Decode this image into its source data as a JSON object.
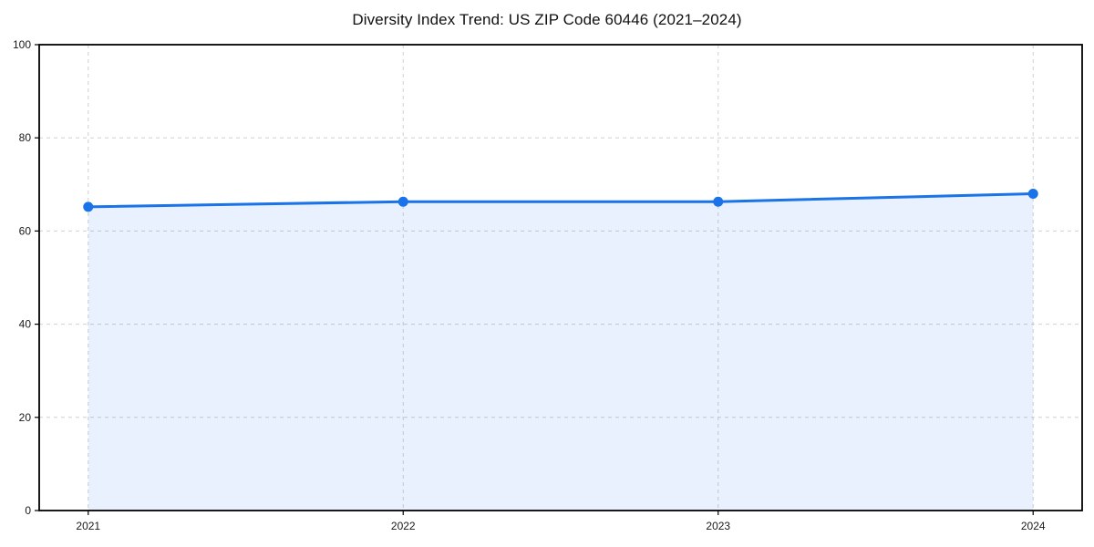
{
  "chart_data": {
    "type": "area",
    "title": "Diversity Index Trend: US ZIP Code 60446 (2021–2024)",
    "categories": [
      "2021",
      "2022",
      "2023",
      "2024"
    ],
    "values": [
      65.2,
      66.3,
      66.3,
      68.0
    ],
    "xlabel": "",
    "ylabel": "",
    "ylim": [
      0,
      100
    ],
    "yticks": [
      0,
      20,
      40,
      60,
      80,
      100
    ],
    "grid": true,
    "grid_style": "dashed",
    "legend": false,
    "marker": "circle",
    "colors": {
      "line": "#1a73e8",
      "marker": "#1a73e8",
      "fill": "#1a73e8",
      "fill_opacity": 0.1,
      "grid": "#d0d0d0",
      "axis": "#000000",
      "tick_text": "#1a1a1a",
      "title_text": "#111111",
      "background": "#ffffff"
    }
  }
}
